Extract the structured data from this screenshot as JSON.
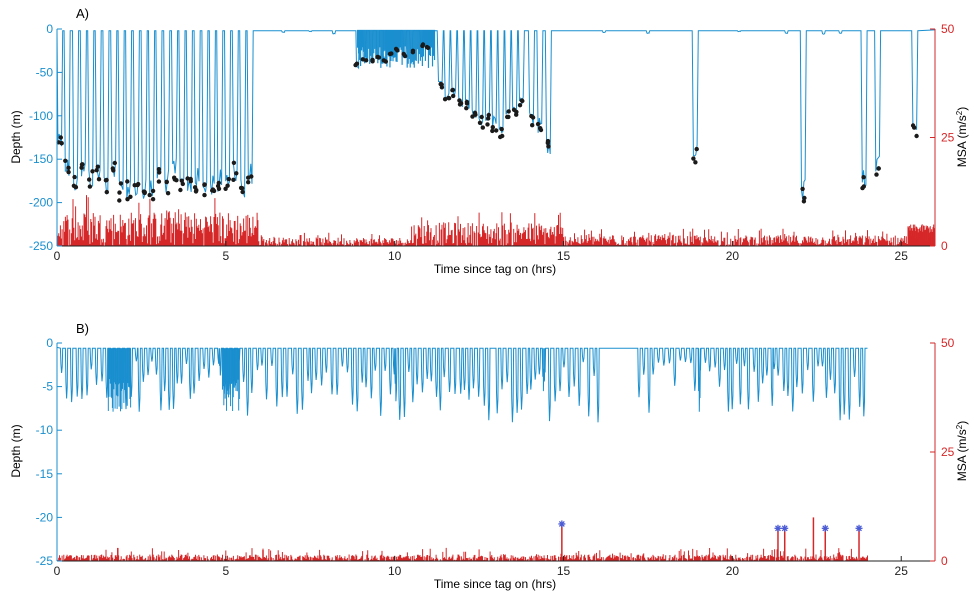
{
  "colors": {
    "depth": "#1a8fcf",
    "msa": "#d62728",
    "marker": "#1a1a1a",
    "star": "#4a5bd4",
    "axis": "#222222"
  },
  "chart_data": [
    {
      "type": "line",
      "panel_label": "A)",
      "xlabel": "Time since tag on (hrs)",
      "ylabel_left": "Depth (m)",
      "ylabel_right_main": "MSA (m/s",
      "ylabel_right_sup": "2",
      "ylabel_right_tail": ")",
      "xlim": [
        0,
        26
      ],
      "ylim_left": [
        -250,
        0
      ],
      "ylim_right": [
        0,
        50
      ],
      "x_ticks": [
        0,
        5,
        10,
        15,
        20,
        25
      ],
      "y_ticks_left": [
        0,
        -50,
        -100,
        -150,
        -200,
        -250
      ],
      "y_ticks_right": [
        0,
        25,
        50
      ],
      "series": [
        {
          "axis": "left",
          "dives": [
            [
              0.08,
              -135
            ],
            [
              0.3,
              -172
            ],
            [
              0.55,
              -190
            ],
            [
              0.78,
              -175
            ],
            [
              1.0,
              -185
            ],
            [
              1.22,
              -180
            ],
            [
              1.45,
              -192
            ],
            [
              1.68,
              -175
            ],
            [
              1.9,
              -200
            ],
            [
              2.12,
              -198
            ],
            [
              2.35,
              -195
            ],
            [
              2.58,
              -200
            ],
            [
              2.8,
              -202
            ],
            [
              3.02,
              -180
            ],
            [
              3.25,
              -190
            ],
            [
              3.48,
              -175
            ],
            [
              3.7,
              -195
            ],
            [
              3.92,
              -192
            ],
            [
              4.15,
              -188
            ],
            [
              4.38,
              -198
            ],
            [
              4.6,
              -192
            ],
            [
              4.82,
              -190
            ],
            [
              5.05,
              -185
            ],
            [
              5.28,
              -175
            ],
            [
              5.5,
              -198
            ],
            [
              5.72,
              -180
            ],
            [
              6.7,
              -4
            ],
            [
              7.5,
              -3
            ],
            [
              8.2,
              -6
            ],
            [
              8.9,
              -45
            ],
            [
              9.1,
              -38
            ],
            [
              9.3,
              -40
            ],
            [
              9.5,
              -35
            ],
            [
              9.7,
              -38
            ],
            [
              9.9,
              -30
            ],
            [
              10.1,
              -25
            ],
            [
              10.3,
              -32
            ],
            [
              10.5,
              -28
            ],
            [
              10.8,
              -20
            ],
            [
              11.0,
              -22
            ],
            [
              11.35,
              -70
            ],
            [
              11.55,
              -82
            ],
            [
              11.75,
              -78
            ],
            [
              11.95,
              -90
            ],
            [
              12.15,
              -92
            ],
            [
              12.35,
              -105
            ],
            [
              12.55,
              -115
            ],
            [
              12.75,
              -110
            ],
            [
              12.95,
              -118
            ],
            [
              13.15,
              -125
            ],
            [
              13.35,
              -105
            ],
            [
              13.55,
              -100
            ],
            [
              13.75,
              -88
            ],
            [
              14.05,
              -112
            ],
            [
              14.3,
              -120
            ],
            [
              14.55,
              -145
            ],
            [
              16.2,
              -4
            ],
            [
              17.5,
              -5
            ],
            [
              18.9,
              -155
            ],
            [
              20.2,
              -3
            ],
            [
              21.6,
              -5
            ],
            [
              22.1,
              -200
            ],
            [
              22.7,
              -6
            ],
            [
              23.2,
              -5
            ],
            [
              23.9,
              -185
            ],
            [
              24.3,
              -170
            ],
            [
              25.4,
              -125
            ]
          ]
        },
        {
          "axis": "right",
          "segments": [
            [
              0,
              6,
              8
            ],
            [
              6,
              10.5,
              2
            ],
            [
              10.5,
              15,
              5.5
            ],
            [
              15,
              26,
              2.5
            ]
          ]
        }
      ]
    },
    {
      "type": "line",
      "panel_label": "B)",
      "xlabel": "Time since tag on (hrs)",
      "ylabel_left": "Depth (m)",
      "ylabel_right_main": "MSA (m/s",
      "ylabel_right_sup": "2",
      "ylabel_right_tail": ")",
      "xlim": [
        0,
        26
      ],
      "ylim_left": [
        -25,
        0
      ],
      "ylim_right": [
        0,
        50
      ],
      "x_ticks": [
        0,
        5,
        10,
        15,
        20,
        25
      ],
      "y_ticks_left": [
        0,
        -5,
        -10,
        -15,
        -20,
        -25
      ],
      "y_ticks_right": [
        0,
        25,
        50
      ],
      "series": [
        {
          "axis": "left",
          "dive_ranges": [
            [
              0.1,
              2.4,
              -9
            ],
            [
              2.4,
              4.8,
              -8
            ],
            [
              4.8,
              7.5,
              -8.5
            ],
            [
              7.5,
              10.0,
              -9.5
            ],
            [
              10.0,
              12.8,
              -9
            ],
            [
              13.0,
              14.4,
              -9.5
            ],
            [
              14.4,
              16.0,
              -9.5
            ],
            [
              17.2,
              19.0,
              -8.5
            ],
            [
              19.0,
              21.2,
              -8.5
            ],
            [
              21.2,
              22.5,
              -8
            ],
            [
              22.5,
              24.0,
              -9.5
            ]
          ],
          "end_hr": 24.0
        },
        {
          "axis": "right",
          "base": 1.5,
          "spikes": [
            [
              14.95,
              8.5
            ],
            [
              21.35,
              7.5
            ],
            [
              21.55,
              7.5
            ],
            [
              22.75,
              7.5
            ],
            [
              23.75,
              7.5
            ],
            [
              22.4,
              10
            ],
            [
              1.8,
              3
            ],
            [
              6.1,
              2.5
            ]
          ],
          "stars": [
            [
              14.95,
              8.5
            ],
            [
              21.35,
              7.5
            ],
            [
              21.55,
              7.5
            ],
            [
              22.75,
              7.5
            ],
            [
              23.75,
              7.5
            ]
          ]
        }
      ]
    }
  ]
}
